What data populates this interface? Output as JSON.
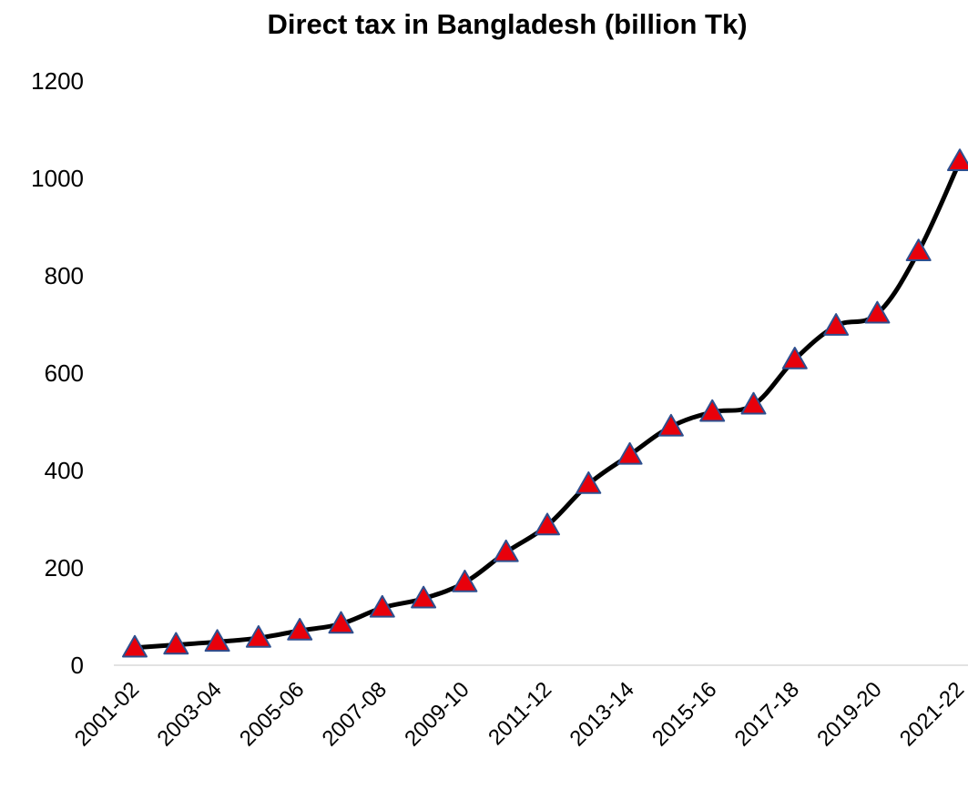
{
  "chart_data": {
    "type": "line",
    "title": "Direct tax in Bangladesh (billion Tk)",
    "xlabel": "",
    "ylabel": "",
    "ylim": [
      0,
      1200
    ],
    "yticks": [
      "0",
      "200",
      "400",
      "600",
      "800",
      "1000",
      "1200"
    ],
    "categories": [
      "2001-02",
      "2002-03",
      "2003-04",
      "2004-05",
      "2005-06",
      "2006-07",
      "2007-08",
      "2008-09",
      "2009-10",
      "2010-11",
      "2011-12",
      "2012-13",
      "2013-14",
      "2014-15",
      "2015-16",
      "2016-17",
      "2017-18",
      "2018-19",
      "2019-20",
      "2020-21",
      "2021-22"
    ],
    "shown_category_labels": [
      "2001-02",
      "2003-04",
      "2005-06",
      "2007-08",
      "2009-10",
      "2011-12",
      "2013-14",
      "2015-16",
      "2017-18",
      "2019-20",
      "2021-22"
    ],
    "values": [
      36,
      42,
      48,
      56,
      71,
      85,
      118,
      137,
      170,
      232,
      287,
      372,
      432,
      490,
      520,
      535,
      628,
      697,
      722,
      850,
      1035
    ],
    "grid": false,
    "legend": "none",
    "colors": {
      "line": "#000000",
      "marker_fill": "#e8000b",
      "marker_edge": "#2e4f8f",
      "axis": "#d9d9d9"
    },
    "marker": "triangle-up"
  }
}
